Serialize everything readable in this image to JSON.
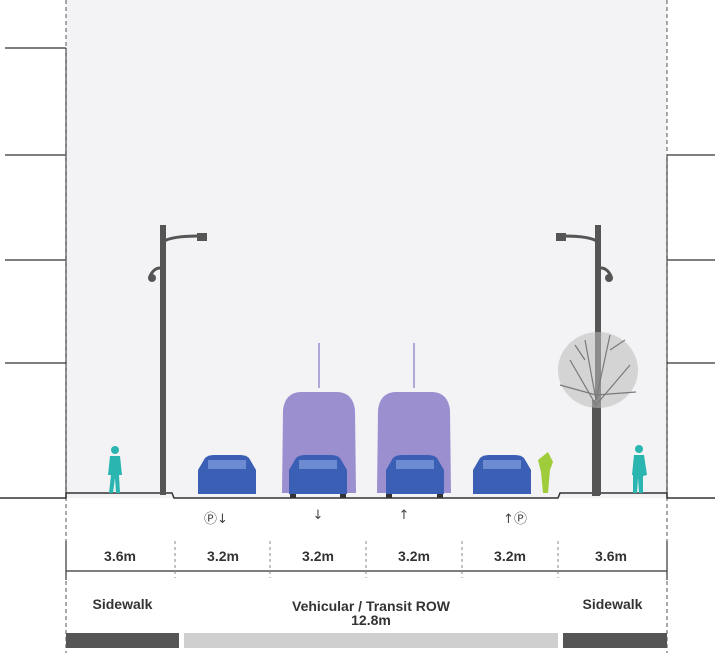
{
  "dimensions": [
    "3.6m",
    "3.2m",
    "3.2m",
    "3.2m",
    "3.2m",
    "3.6m"
  ],
  "zones": {
    "left_sidewalk": "Sidewalk",
    "roadway_name": "Vehicular / Transit ROW",
    "roadway_width": "12.8m",
    "right_sidewalk": "Sidewalk"
  },
  "lane_symbols": [
    "Ⓟ↓",
    "↓",
    "↑",
    "↑Ⓟ"
  ],
  "colors": {
    "sky": "#f2f2f4",
    "car": "#3a5fb5",
    "bus": "#9b8fd0",
    "pedestrian": "#2bb5b0",
    "shrub": "#9fcc3a",
    "pole": "#555555",
    "bar_dark": "#555555",
    "bar_light": "#cfcfcf"
  }
}
